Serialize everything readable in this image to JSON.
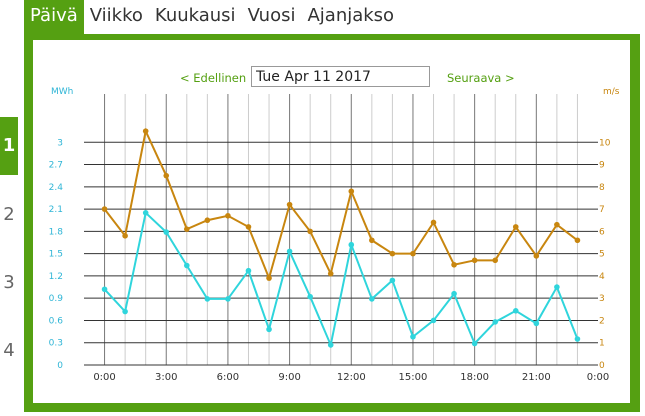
{
  "tabs": [
    "Päivä",
    "Viikko",
    "Kuukausi",
    "Vuosi",
    "Ajanjakso"
  ],
  "active_tab": 0,
  "nav": {
    "prev_label": "< Edellinen",
    "date_value": "Tue Apr 11 2017",
    "next_label": "Seuraava >"
  },
  "side_numbers": [
    "1",
    "2",
    "3",
    "4"
  ],
  "active_side": 0,
  "colors": {
    "accent": "#55a012",
    "energy": "#2fd5dc",
    "wind": "#c8860f"
  },
  "chart_data": {
    "type": "line",
    "x": [
      "0:30",
      "1:30",
      "2:30",
      "3:30",
      "4:30",
      "5:30",
      "6:30",
      "7:30",
      "8:30",
      "9:30",
      "10:30",
      "11:30",
      "12:30",
      "13:30",
      "14:30",
      "15:30",
      "16:30",
      "17:30",
      "18:30",
      "19:30",
      "20:30",
      "21:30",
      "22:30",
      "23:30"
    ],
    "x_ticks": [
      "0:00",
      "3:00",
      "6:00",
      "9:00",
      "12:00",
      "15:00",
      "18:00",
      "21:00",
      "0:00"
    ],
    "xlim": [
      0,
      25
    ],
    "left_axis": {
      "label": "MWh",
      "ylim": [
        0,
        3.3
      ],
      "ticks": [
        "0",
        "0.3",
        "0.6",
        "0.9",
        "1.2",
        "1.5",
        "1.8",
        "2.1",
        "2.4",
        "2.7",
        "3"
      ]
    },
    "right_axis": {
      "label": "m/s",
      "ylim": [
        0,
        11
      ],
      "ticks": [
        "0",
        "1",
        "2",
        "3",
        "4",
        "5",
        "6",
        "7",
        "8",
        "9",
        "10"
      ]
    },
    "series": [
      {
        "axis": "left",
        "values": [
          1.02,
          0.72,
          2.05,
          1.79,
          1.34,
          0.89,
          0.89,
          1.27,
          0.48,
          1.53,
          0.92,
          0.27,
          1.62,
          0.89,
          1.14,
          0.38,
          0.6,
          0.96,
          0.29,
          0.58,
          0.73,
          0.56,
          1.05,
          0.35
        ]
      },
      {
        "axis": "right",
        "values": [
          7.0,
          5.8,
          10.5,
          8.5,
          6.1,
          6.5,
          6.7,
          6.2,
          3.9,
          7.2,
          6.0,
          4.1,
          7.8,
          5.6,
          5.0,
          5.0,
          6.4,
          4.5,
          4.7,
          4.7,
          6.2,
          4.9,
          6.3,
          5.6
        ]
      }
    ],
    "grid": true
  }
}
